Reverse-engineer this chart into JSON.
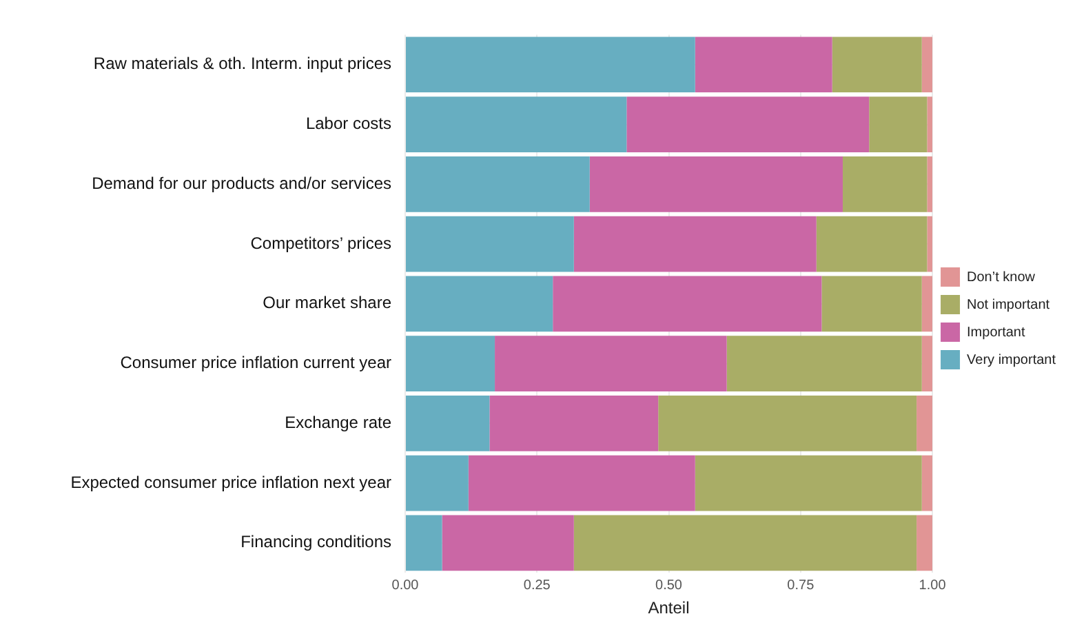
{
  "chart_data": {
    "type": "bar",
    "orientation": "horizontal",
    "stacked": true,
    "xlabel": "Anteil",
    "categories": [
      "Raw materials & oth. Interm. input prices",
      "Labor costs",
      "Demand for our products and/or services",
      "Competitors’ prices",
      "Our market share",
      "Consumer price inflation current year",
      "Exchange rate",
      "Expected consumer price inflation next year",
      "Financing conditions"
    ],
    "series": [
      {
        "name": "Very important",
        "color": "#67aec1",
        "values": [
          0.55,
          0.42,
          0.35,
          0.32,
          0.28,
          0.17,
          0.16,
          0.12,
          0.07
        ]
      },
      {
        "name": "Important",
        "color": "#ca67a5",
        "values": [
          0.26,
          0.46,
          0.48,
          0.46,
          0.51,
          0.44,
          0.32,
          0.43,
          0.25
        ]
      },
      {
        "name": "Not important",
        "color": "#a9ad66",
        "values": [
          0.17,
          0.11,
          0.16,
          0.21,
          0.19,
          0.37,
          0.49,
          0.43,
          0.65
        ]
      },
      {
        "name": "Don’t know",
        "color": "#e19595",
        "values": [
          0.02,
          0.01,
          0.01,
          0.01,
          0.02,
          0.02,
          0.03,
          0.02,
          0.03
        ]
      }
    ],
    "xlim": [
      0,
      1
    ],
    "xticks": [
      {
        "value": 0,
        "label": "0.00"
      },
      {
        "value": 0.25,
        "label": "0.25"
      },
      {
        "value": 0.5,
        "label": "0.50"
      },
      {
        "value": 0.75,
        "label": "0.75"
      },
      {
        "value": 1,
        "label": "1.00"
      }
    ],
    "grid": true,
    "legend": "right"
  }
}
